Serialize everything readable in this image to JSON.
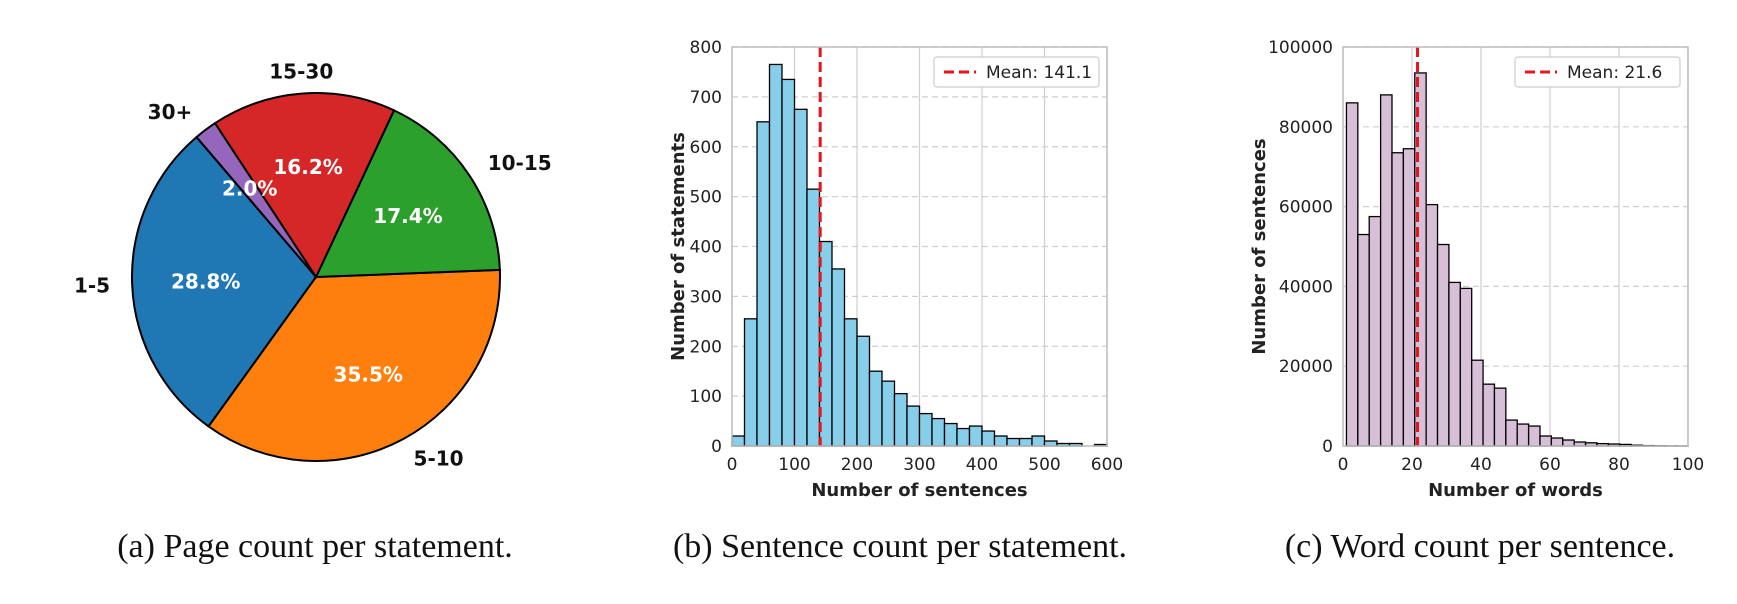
{
  "chart_data": [
    {
      "type": "pie",
      "categories": [
        "1-5",
        "5-10",
        "10-15",
        "15-30",
        "30+"
      ],
      "values": [
        28.8,
        35.5,
        17.4,
        16.2,
        2.0
      ],
      "labels_pct": [
        "28.8%",
        "35.5%",
        "17.4%",
        "16.2%",
        "2.0%"
      ],
      "colors": [
        "#1f77b4",
        "#ff7f0e",
        "#2ca02c",
        "#d62728",
        "#9467bd"
      ],
      "caption": "(a) Page count per statement."
    },
    {
      "type": "bar",
      "subtype": "histogram",
      "xlabel": "Number of sentences",
      "ylabel": "Number of statements",
      "xlim": [
        0,
        600
      ],
      "ylim": [
        0,
        800
      ],
      "xticks": [
        "0",
        "100",
        "200",
        "300",
        "400",
        "500",
        "600"
      ],
      "yticks": [
        "0",
        "100",
        "200",
        "300",
        "400",
        "500",
        "600",
        "700",
        "800"
      ],
      "bin_start": 0,
      "bin_width": 20,
      "values": [
        20,
        255,
        650,
        765,
        735,
        675,
        515,
        410,
        355,
        255,
        220,
        150,
        130,
        105,
        80,
        65,
        55,
        45,
        35,
        40,
        30,
        20,
        15,
        15,
        20,
        10,
        5,
        5,
        0,
        3
      ],
      "bar_color": "#87ceeb",
      "mean_line": {
        "value": 141.1,
        "label": "Mean: 141.1",
        "color": "#e8141c"
      },
      "legend_position": "top-right",
      "grid": true,
      "caption": "(b) Sentence count per statement."
    },
    {
      "type": "bar",
      "subtype": "histogram",
      "xlabel": "Number of words",
      "ylabel": "Number of sentences",
      "xlim": [
        0,
        100
      ],
      "ylim": [
        0,
        100000
      ],
      "xticks": [
        "0",
        "20",
        "40",
        "60",
        "80",
        "100"
      ],
      "yticks": [
        "0",
        "20000",
        "40000",
        "60000",
        "80000",
        "100000"
      ],
      "bin_start": 1,
      "bin_width": 3.3,
      "values": [
        86000,
        53000,
        57500,
        88000,
        73500,
        74500,
        93500,
        60500,
        50500,
        41000,
        39500,
        21500,
        15500,
        14500,
        6500,
        5500,
        5000,
        2500,
        2000,
        1500,
        1000,
        800,
        600,
        500,
        400,
        200,
        100,
        50,
        20,
        10
      ],
      "bar_color": "#d8bfd8",
      "mean_line": {
        "value": 21.6,
        "label": "Mean: 21.6",
        "color": "#e8141c"
      },
      "legend_position": "top-right",
      "grid": true,
      "caption": "(c) Word count per sentence."
    }
  ]
}
